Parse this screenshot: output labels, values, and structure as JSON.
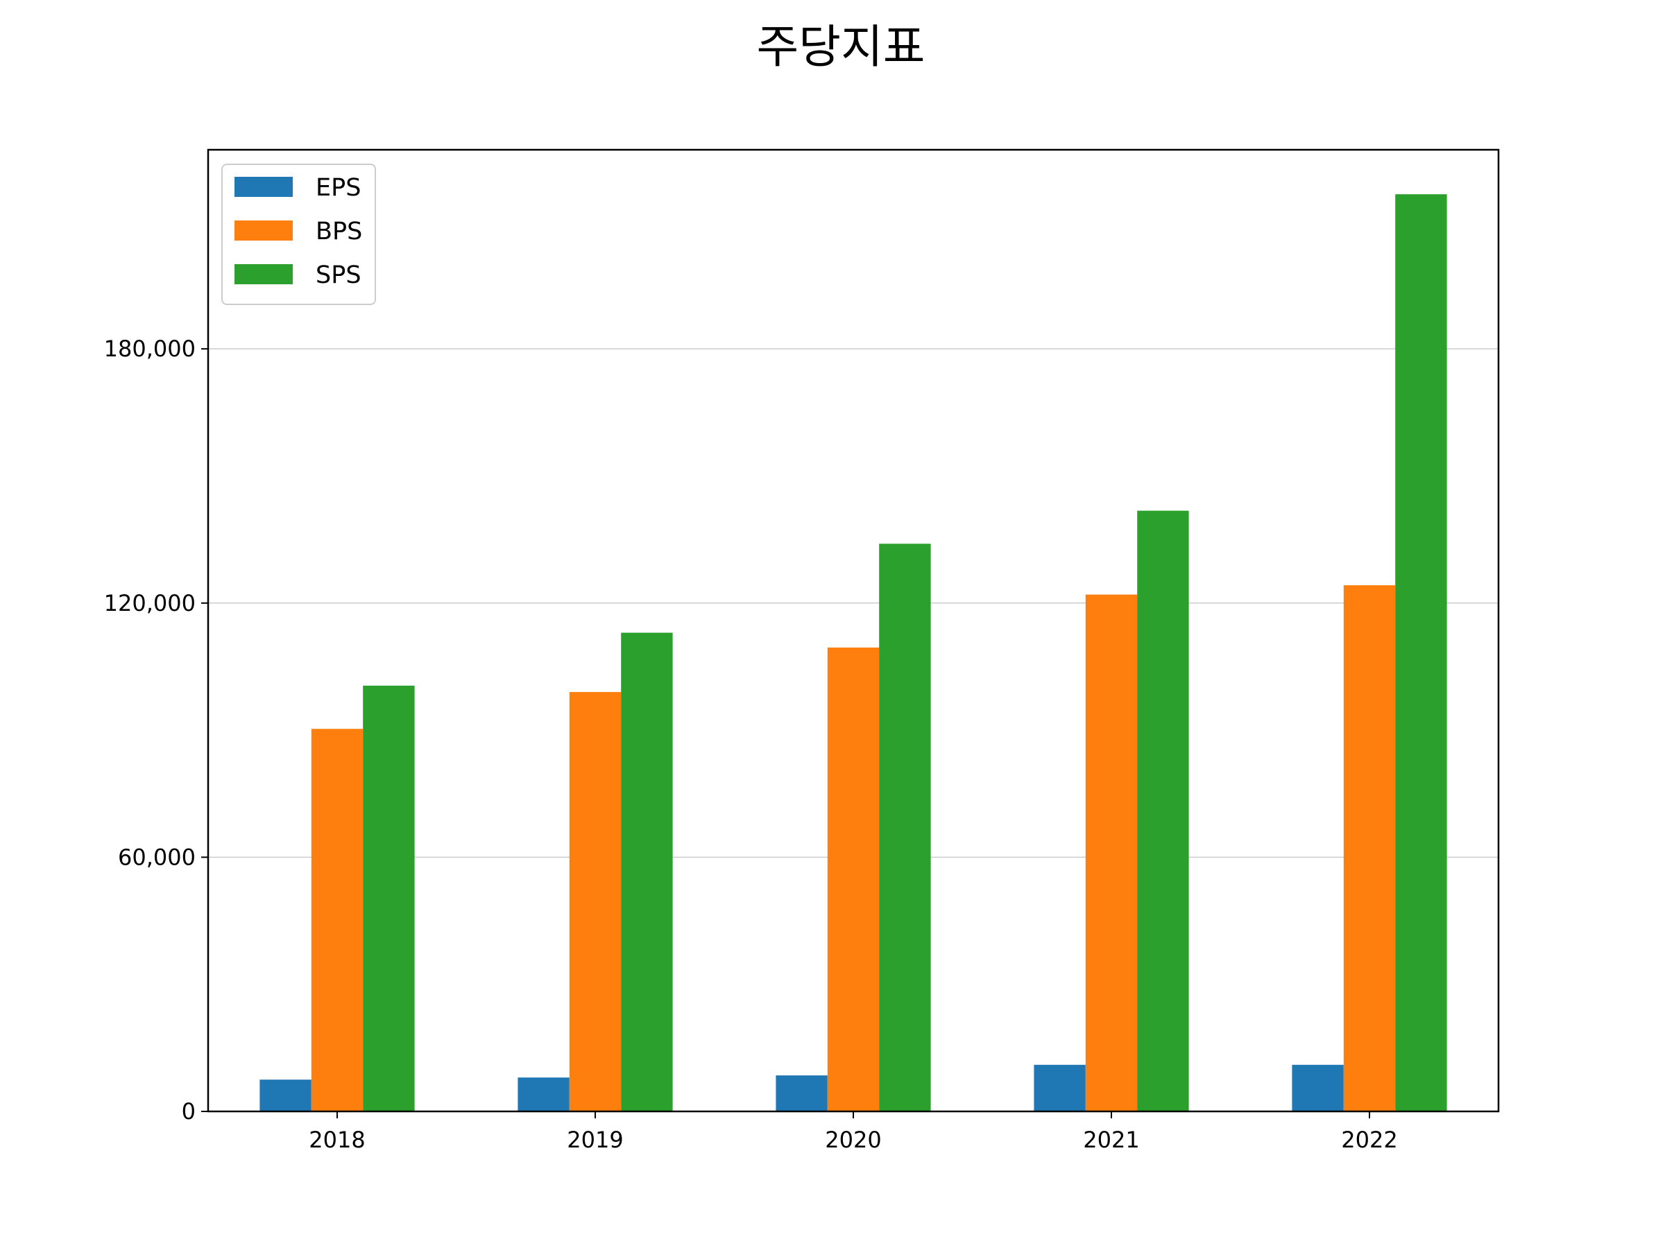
{
  "chart_data": {
    "type": "bar",
    "title": "주당지표",
    "xlabel": "",
    "ylabel": "",
    "categories": [
      "2018",
      "2019",
      "2020",
      "2021",
      "2022"
    ],
    "series": [
      {
        "name": "EPS",
        "color": "#1f77b4",
        "values": [
          7500,
          8000,
          8500,
          11000,
          11000
        ]
      },
      {
        "name": "BPS",
        "color": "#ff7f0e",
        "values": [
          90300,
          99000,
          109500,
          122000,
          124200
        ]
      },
      {
        "name": "SPS",
        "color": "#2ca02c",
        "values": [
          100500,
          113000,
          134000,
          141800,
          216500
        ]
      }
    ],
    "ylim": [
      0,
      227000
    ],
    "yticks": [
      0,
      60000,
      120000,
      180000
    ],
    "ytick_labels": [
      "0",
      "60,000",
      "120,000",
      "180,000"
    ],
    "grid": "y",
    "legend_position": "upper-left"
  }
}
